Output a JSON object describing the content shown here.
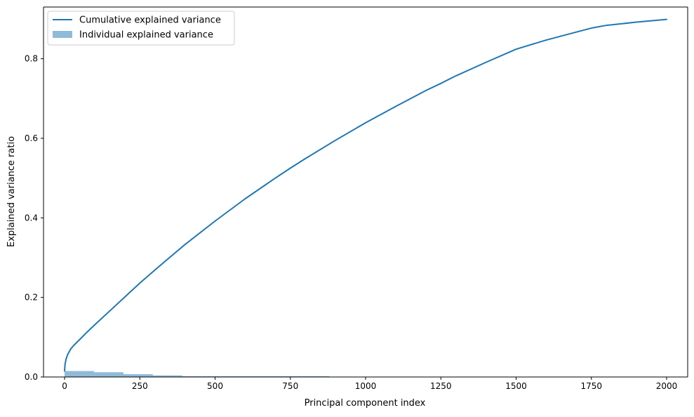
{
  "chart_data": {
    "type": "line",
    "title": "",
    "xlabel": "Principal component index",
    "ylabel": "Explained variance ratio",
    "xlim": [
      -70,
      2070
    ],
    "ylim": [
      0,
      0.93
    ],
    "grid": false,
    "legend_placement": "top-left",
    "x_ticks": [
      0,
      250,
      500,
      750,
      1000,
      1250,
      1500,
      1750,
      2000
    ],
    "x_tick_labels": [
      "0",
      "250",
      "500",
      "750",
      "1000",
      "1250",
      "1500",
      "1750",
      "2000"
    ],
    "y_ticks": [
      0.0,
      0.2,
      0.4,
      0.6,
      0.8
    ],
    "y_tick_labels": [
      "0.0",
      "0.2",
      "0.4",
      "0.6",
      "0.8"
    ],
    "series": [
      {
        "name": "Cumulative explained variance",
        "kind": "line",
        "color": "#1f77b4",
        "x": [
          0,
          1,
          2,
          5,
          10,
          20,
          30,
          50,
          75,
          100,
          150,
          200,
          250,
          300,
          400,
          500,
          600,
          700,
          750,
          800,
          900,
          1000,
          1100,
          1200,
          1250,
          1300,
          1400,
          1500,
          1600,
          1700,
          1750,
          1800,
          1900,
          2000
        ],
        "y": [
          0.015,
          0.027,
          0.034,
          0.045,
          0.056,
          0.07,
          0.079,
          0.094,
          0.113,
          0.131,
          0.166,
          0.201,
          0.236,
          0.269,
          0.333,
          0.392,
          0.448,
          0.5,
          0.525,
          0.549,
          0.595,
          0.639,
          0.68,
          0.72,
          0.738,
          0.757,
          0.791,
          0.824,
          0.847,
          0.867,
          0.877,
          0.884,
          0.892,
          0.899
        ]
      },
      {
        "name": "Individual explained variance",
        "kind": "bar",
        "color": "#1f77b4",
        "opacity": 0.5,
        "x_range": [
          0,
          880
        ],
        "values": [
          0.015,
          0.012,
          0.007,
          0.004,
          0.0008,
          0.0004,
          0.0003,
          0.0003,
          0.0002
        ]
      }
    ]
  }
}
